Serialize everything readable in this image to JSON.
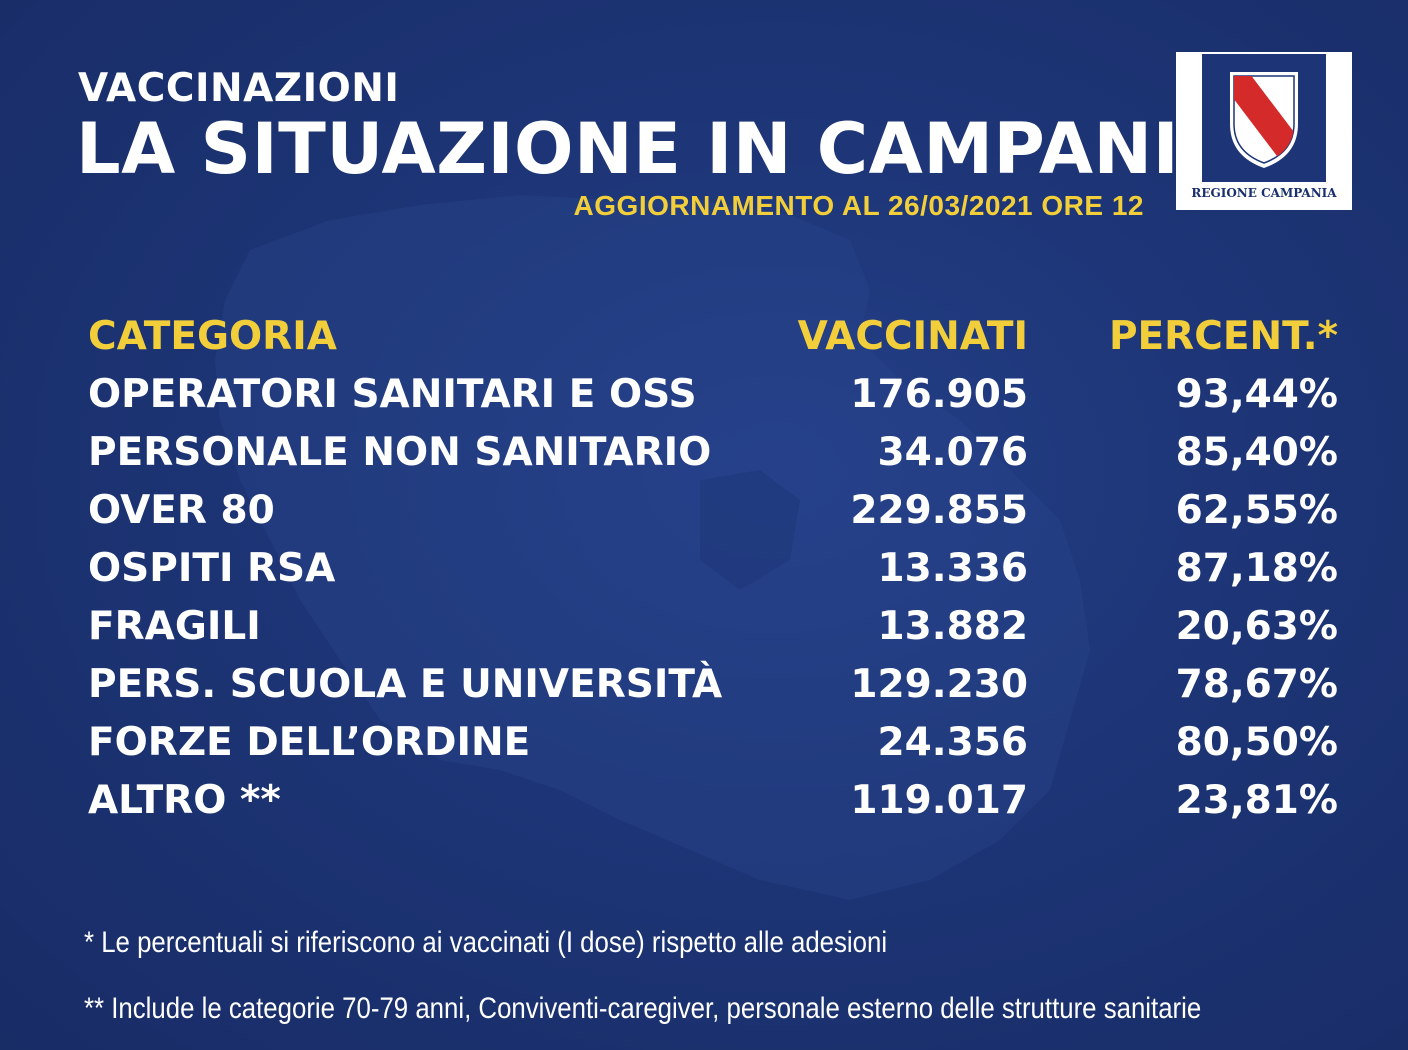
{
  "header": {
    "kicker": "VACCINAZIONI",
    "title": "LA SITUAZIONE IN CAMPANIA",
    "updated": "AGGIORNAMENTO AL 26/03/2021 ORE 12"
  },
  "logo": {
    "caption": "REGIONE CAMPANIA",
    "icon": "campania-coat-of-arms-icon"
  },
  "table": {
    "headers": {
      "category": "CATEGORIA",
      "vaccinated": "VACCINATI",
      "percent": "PERCENT.*"
    },
    "rows": [
      {
        "category": "OPERATORI SANITARI E OSS",
        "vaccinated": "176.905",
        "percent": "93,44%"
      },
      {
        "category": "PERSONALE NON SANITARIO",
        "vaccinated": "34.076",
        "percent": "85,40%"
      },
      {
        "category": "OVER 80",
        "vaccinated": "229.855",
        "percent": "62,55%"
      },
      {
        "category": "OSPITI RSA",
        "vaccinated": "13.336",
        "percent": "87,18%"
      },
      {
        "category": "FRAGILI",
        "vaccinated": "13.882",
        "percent": "20,63%"
      },
      {
        "category": "PERS.  SCUOLA E UNIVERSITÀ",
        "vaccinated": "129.230",
        "percent": "78,67%"
      },
      {
        "category": "FORZE DELL’ORDINE",
        "vaccinated": "24.356",
        "percent": "80,50%"
      },
      {
        "category": "ALTRO **",
        "vaccinated": "119.017",
        "percent": "23,81%"
      }
    ]
  },
  "footnotes": [
    "* Le percentuali si riferiscono ai vaccinati (I dose) rispetto alle adesioni",
    "** Include le categorie 70-79 anni, Conviventi-caregiver, personale esterno delle strutture sanitarie"
  ],
  "colors": {
    "background": "#1d3576",
    "accent": "#f2cf3a",
    "text": "#ffffff",
    "logo_red": "#d42a2a"
  }
}
